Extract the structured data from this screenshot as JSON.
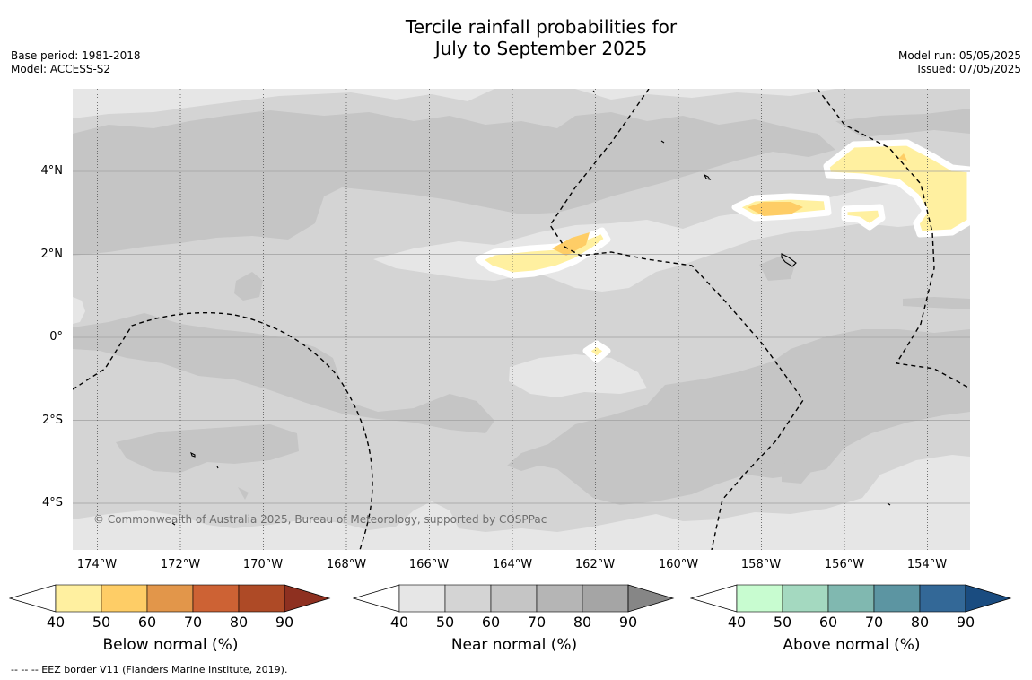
{
  "title": {
    "line1": "Tercile rainfall probabilities for",
    "line2": "July to September 2025"
  },
  "meta_left": {
    "base_period": "Base period: 1981-2018",
    "model": "Model: ACCESS-S2"
  },
  "meta_right": {
    "model_run": "Model run: 05/05/2025",
    "issued": "Issued: 07/05/2025"
  },
  "map": {
    "lat_labels": [
      "4°N",
      "2°N",
      "0°",
      "2°S",
      "4°S"
    ],
    "lon_labels": [
      "174°W",
      "172°W",
      "170°W",
      "168°W",
      "166°W",
      "164°W",
      "162°W",
      "160°W",
      "158°W",
      "156°W",
      "154°W"
    ],
    "copyright": "© Commonwealth of Australia 2025, Bureau of Meteorology, supported by COSPPac",
    "colors": {
      "near_40": "#e6e6e6",
      "near_50": "#d4d4d4",
      "near_60": "#c5c5c5",
      "below_40": "#fff0a0",
      "below_50": "#fecd66",
      "eez_border": "#000000"
    }
  },
  "colorbars": [
    {
      "label": "Below normal (%)",
      "ticks": [
        "40",
        "50",
        "60",
        "70",
        "80",
        "90"
      ],
      "colors": [
        "#fff0a0",
        "#fecd66",
        "#e2964a",
        "#cd6234",
        "#ae4a26",
        "#8e3020"
      ]
    },
    {
      "label": "Near normal (%)",
      "ticks": [
        "40",
        "50",
        "60",
        "70",
        "80",
        "90"
      ],
      "colors": [
        "#e6e6e6",
        "#d4d4d4",
        "#c5c5c5",
        "#b5b5b5",
        "#a5a5a5",
        "#868686"
      ]
    },
    {
      "label": "Above normal (%)",
      "ticks": [
        "40",
        "50",
        "60",
        "70",
        "80",
        "90"
      ],
      "colors": [
        "#c8fcd0",
        "#a4d9c0",
        "#80b8b0",
        "#5c95a2",
        "#336897",
        "#1a4c80"
      ]
    }
  ],
  "footer": "--  --  -- EEZ border V11 (Flanders Marine Institute, 2019)."
}
